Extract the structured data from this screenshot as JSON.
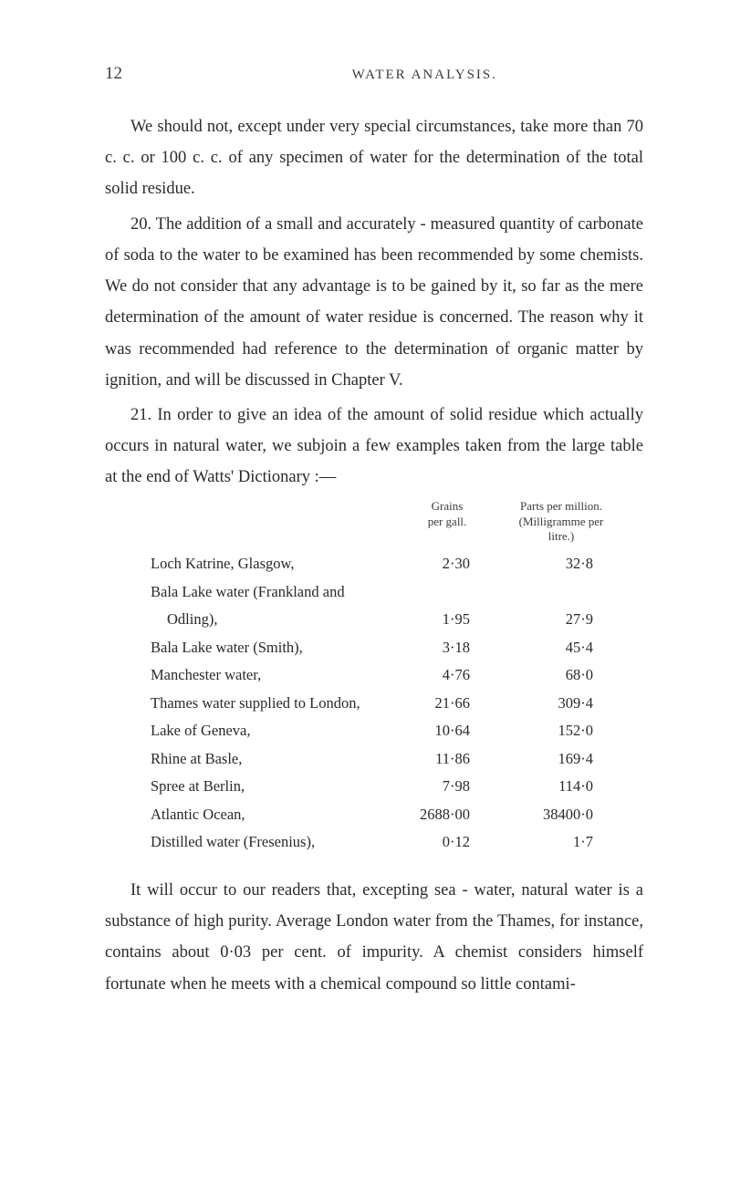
{
  "header": {
    "page_number": "12",
    "title": "WATER ANALYSIS."
  },
  "paragraphs": {
    "p1": "We should not, except under very special circumstances, take more than 70 c. c. or 100 c. c. of any specimen of water for the determination of the total solid residue.",
    "p2": "20. The addition of a small and accurately - measured quantity of carbonate of soda to the water to be examined has been recommended by some chemists. We do not consider that any advantage is to be gained by it, so far as the mere determination of the amount of water residue is concerned. The reason why it was recommended had reference to the determination of organic matter by ignition, and will be discussed in Chapter V.",
    "p3": "21. In order to give an idea of the amount of solid residue which actually occurs in natural water, we subjoin a few examples taken from the large table at the end of Watts' Dictionary :—",
    "p4": "It will occur to our readers that, excepting sea - water, natural water is a substance of high purity. Average London water from the Thames, for instance, contains about 0·03 per cent. of impurity. A chemist considers himself fortunate when he meets with a chemical compound so little contami-"
  },
  "table": {
    "headers": {
      "col1_line1": "Grains",
      "col1_line2": "per gall.",
      "col2_line1": "Parts per million.",
      "col2_line2": "(Milligramme per",
      "col2_line3": "litre.)"
    },
    "rows": [
      {
        "label": "Loch Katrine, Glasgow,",
        "grains": "2·30",
        "parts": "32·8"
      },
      {
        "label": "Bala Lake water (Frankland and",
        "grains": "",
        "parts": ""
      },
      {
        "label": "Odling),",
        "grains": "1·95",
        "parts": "27·9",
        "indent": true
      },
      {
        "label": "Bala Lake water (Smith),",
        "grains": "3·18",
        "parts": "45·4"
      },
      {
        "label": "Manchester water,",
        "grains": "4·76",
        "parts": "68·0"
      },
      {
        "label": "Thames water supplied to London,",
        "grains": "21·66",
        "parts": "309·4"
      },
      {
        "label": "Lake of Geneva,",
        "grains": "10·64",
        "parts": "152·0"
      },
      {
        "label": "Rhine at Basle,",
        "grains": "11·86",
        "parts": "169·4"
      },
      {
        "label": "Spree at Berlin,",
        "grains": "7·98",
        "parts": "114·0"
      },
      {
        "label": "Atlantic Ocean,",
        "grains": "2688·00",
        "parts": "38400·0"
      },
      {
        "label": "Distilled water (Fresenius),",
        "grains": "0·12",
        "parts": "1·7"
      }
    ]
  }
}
